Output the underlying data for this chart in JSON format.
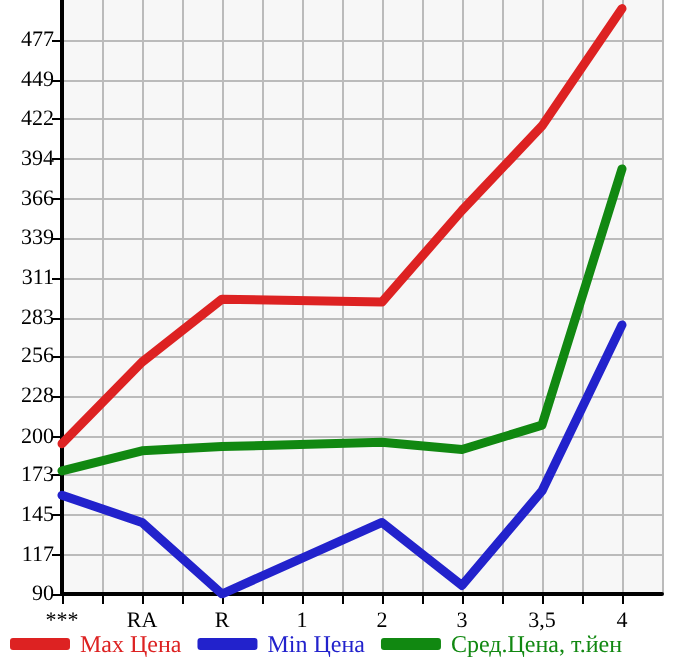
{
  "chart_data": {
    "type": "line",
    "categories": [
      "***",
      "RA",
      "R",
      "1",
      "2",
      "3",
      "3,5",
      "4"
    ],
    "series": [
      {
        "name": "Max Цена",
        "color": "#dd2222",
        "values": [
          195,
          252,
          296,
          null,
          294,
          358,
          417,
          499
        ]
      },
      {
        "name": "Min Цена",
        "color": "#2222cc",
        "values": [
          159,
          140,
          90,
          null,
          140,
          96,
          162,
          278
        ]
      },
      {
        "name": "Сред.Цена, т.йен",
        "color": "#118811",
        "values": [
          176,
          190,
          193,
          null,
          196,
          191,
          208,
          387
        ]
      }
    ],
    "ylim": [
      90,
      505
    ],
    "yticks": [
      90,
      117,
      145,
      173,
      200,
      228,
      256,
      283,
      311,
      339,
      366,
      394,
      422,
      449,
      477
    ],
    "grid": true,
    "legend": "bottom",
    "marker": "none",
    "line_style": "solid"
  }
}
